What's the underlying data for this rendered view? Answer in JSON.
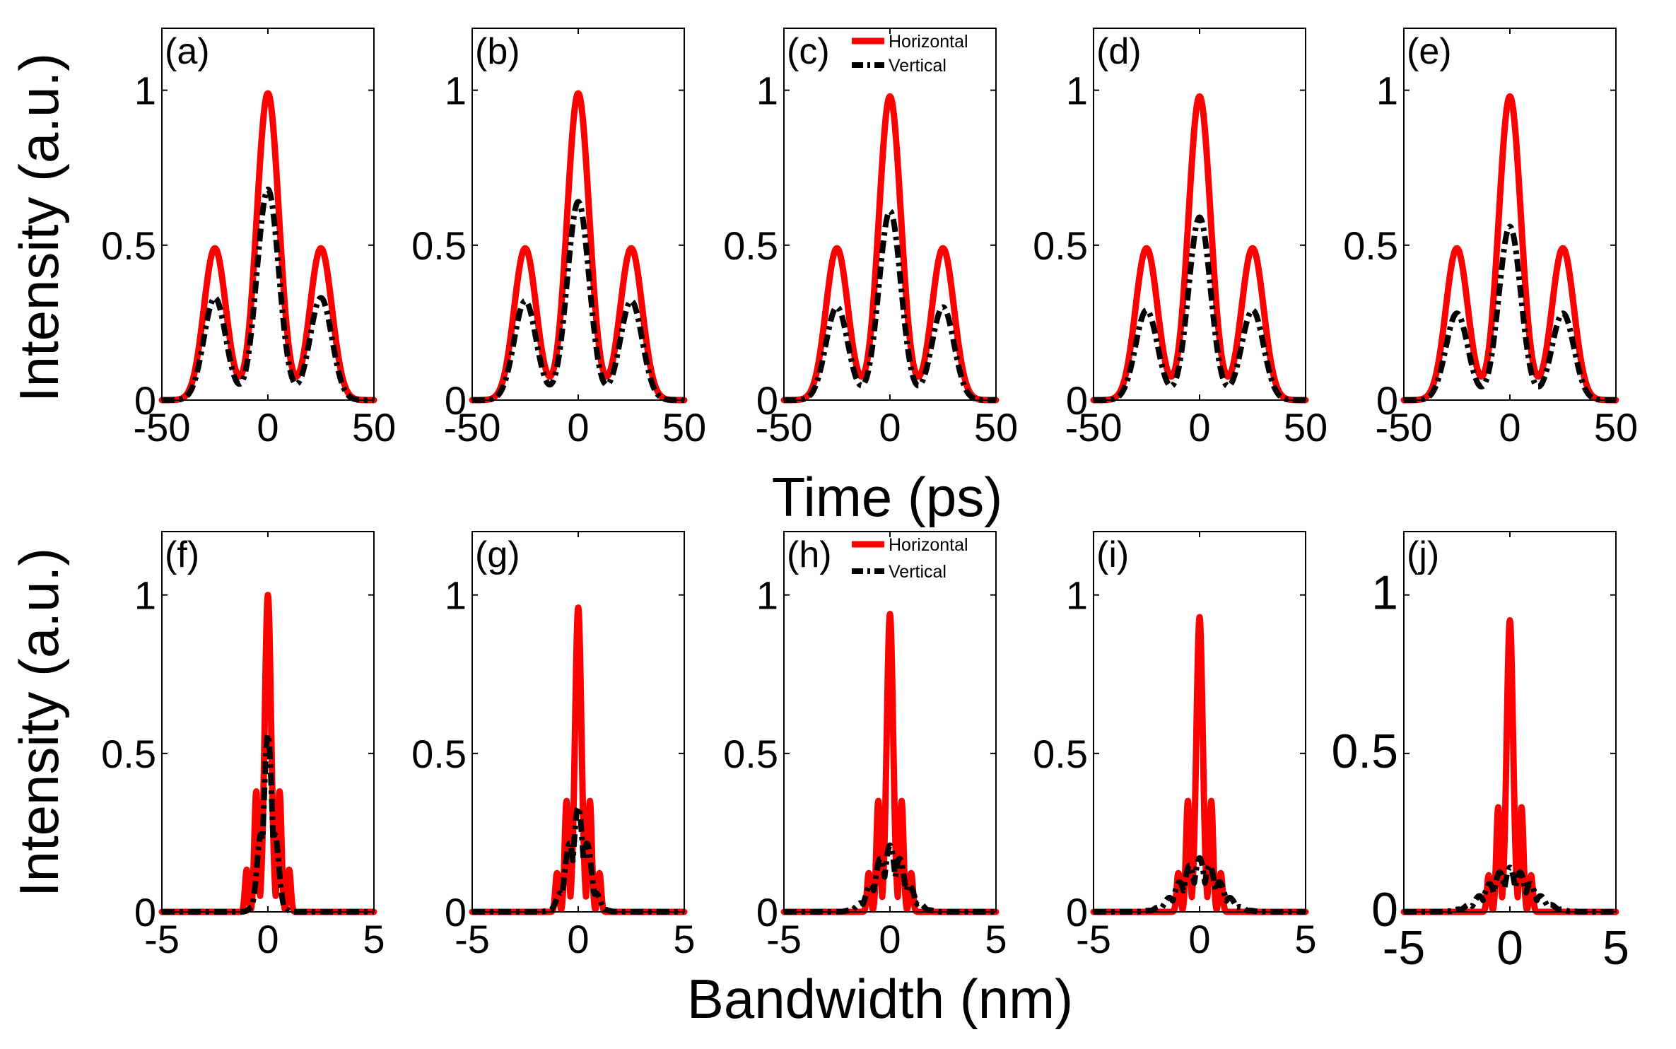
{
  "figure": {
    "shared_ylabel_top": "Intensity (a.u.)",
    "shared_ylabel_bottom": "Intensity (a.u.)",
    "shared_xlabel_top": "Time (ps)",
    "shared_xlabel_bottom": "Bandwidth (nm)"
  },
  "legend": {
    "entries": [
      "Horizontal",
      "Vertical"
    ],
    "colors": {
      "Horizontal": "#ff0000",
      "Vertical": "#000000"
    },
    "styles": {
      "Horizontal": "solid",
      "Vertical": "dash-dot"
    },
    "placement": "top-right of panels (c) and (h)"
  },
  "chart_data": [
    {
      "panel": "(a)",
      "type": "line",
      "domain": "time",
      "xlim": [
        -50,
        50
      ],
      "ylim": [
        0,
        1.2
      ],
      "xticks": [
        "-50",
        "0",
        "50"
      ],
      "yticks": [
        "0",
        "0.5",
        "1"
      ],
      "series": [
        {
          "name": "Horizontal",
          "peaks": [
            {
              "x": -25,
              "y": 0.49
            },
            {
              "x": 0,
              "y": 0.99
            },
            {
              "x": 25,
              "y": 0.49
            }
          ]
        },
        {
          "name": "Vertical",
          "peaks": [
            {
              "x": -25,
              "y": 0.33
            },
            {
              "x": 0,
              "y": 0.68
            },
            {
              "x": 25,
              "y": 0.33
            }
          ]
        }
      ]
    },
    {
      "panel": "(b)",
      "type": "line",
      "domain": "time",
      "xlim": [
        -50,
        50
      ],
      "ylim": [
        0,
        1.2
      ],
      "xticks": [
        "-50",
        "0",
        "50"
      ],
      "yticks": [
        "0",
        "0.5",
        "1"
      ],
      "series": [
        {
          "name": "Horizontal",
          "peaks": [
            {
              "x": -25,
              "y": 0.49
            },
            {
              "x": 0,
              "y": 0.99
            },
            {
              "x": 25,
              "y": 0.49
            }
          ]
        },
        {
          "name": "Vertical",
          "peaks": [
            {
              "x": -25,
              "y": 0.32
            },
            {
              "x": 0,
              "y": 0.64
            },
            {
              "x": 25,
              "y": 0.32
            }
          ]
        }
      ]
    },
    {
      "panel": "(c)",
      "type": "line",
      "domain": "time",
      "xlim": [
        -50,
        50
      ],
      "ylim": [
        0,
        1.2
      ],
      "xticks": [
        "-50",
        "0",
        "50"
      ],
      "yticks": [
        "0",
        "0.5",
        "1"
      ],
      "series": [
        {
          "name": "Horizontal",
          "peaks": [
            {
              "x": -25,
              "y": 0.49
            },
            {
              "x": 0,
              "y": 0.98
            },
            {
              "x": 25,
              "y": 0.49
            }
          ]
        },
        {
          "name": "Vertical",
          "peaks": [
            {
              "x": -25,
              "y": 0.3
            },
            {
              "x": 0,
              "y": 0.61
            },
            {
              "x": 25,
              "y": 0.3
            }
          ]
        }
      ]
    },
    {
      "panel": "(d)",
      "type": "line",
      "domain": "time",
      "xlim": [
        -50,
        50
      ],
      "ylim": [
        0,
        1.2
      ],
      "xticks": [
        "-50",
        "0",
        "50"
      ],
      "yticks": [
        "0",
        "0.5",
        "1"
      ],
      "series": [
        {
          "name": "Horizontal",
          "peaks": [
            {
              "x": -25,
              "y": 0.49
            },
            {
              "x": 0,
              "y": 0.98
            },
            {
              "x": 25,
              "y": 0.49
            }
          ]
        },
        {
          "name": "Vertical",
          "peaks": [
            {
              "x": -25,
              "y": 0.29
            },
            {
              "x": 0,
              "y": 0.59
            },
            {
              "x": 25,
              "y": 0.29
            }
          ]
        }
      ]
    },
    {
      "panel": "(e)",
      "type": "line",
      "domain": "time",
      "xlim": [
        -50,
        50
      ],
      "ylim": [
        0,
        1.2
      ],
      "xticks": [
        "-50",
        "0",
        "50"
      ],
      "yticks": [
        "0",
        "0.5",
        "1"
      ],
      "series": [
        {
          "name": "Horizontal",
          "peaks": [
            {
              "x": -25,
              "y": 0.49
            },
            {
              "x": 0,
              "y": 0.98
            },
            {
              "x": 25,
              "y": 0.49
            }
          ]
        },
        {
          "name": "Vertical",
          "peaks": [
            {
              "x": -25,
              "y": 0.28
            },
            {
              "x": 0,
              "y": 0.56
            },
            {
              "x": 25,
              "y": 0.28
            }
          ]
        }
      ]
    },
    {
      "panel": "(f)",
      "type": "line",
      "domain": "spectrum",
      "xlim": [
        -5,
        5
      ],
      "ylim": [
        0,
        1.2
      ],
      "xticks": [
        "-5",
        "0",
        "5"
      ],
      "yticks": [
        "0",
        "0.5",
        "1"
      ],
      "series": [
        {
          "name": "Horizontal",
          "main_peak": 1.0,
          "side_peaks": 0.38,
          "width": 0.2
        },
        {
          "name": "Vertical",
          "main_peak": 0.56,
          "envelope_width": 0.7
        }
      ]
    },
    {
      "panel": "(g)",
      "type": "line",
      "domain": "spectrum",
      "xlim": [
        -5,
        5
      ],
      "ylim": [
        0,
        1.2
      ],
      "xticks": [
        "-5",
        "0",
        "5"
      ],
      "yticks": [
        "0",
        "0.5",
        "1"
      ],
      "series": [
        {
          "name": "Horizontal",
          "main_peak": 0.96,
          "side_peaks": 0.35,
          "width": 0.2
        },
        {
          "name": "Vertical",
          "main_peak": 0.33,
          "envelope_width": 1.1
        }
      ]
    },
    {
      "panel": "(h)",
      "type": "line",
      "domain": "spectrum",
      "xlim": [
        -5,
        5
      ],
      "ylim": [
        0,
        1.2
      ],
      "xticks": [
        "-5",
        "0",
        "5"
      ],
      "yticks": [
        "0",
        "0.5",
        "1"
      ],
      "series": [
        {
          "name": "Horizontal",
          "main_peak": 0.94,
          "side_peaks": 0.35,
          "width": 0.2
        },
        {
          "name": "Vertical",
          "main_peak": 0.21,
          "envelope_width": 1.6
        }
      ]
    },
    {
      "panel": "(i)",
      "type": "line",
      "domain": "spectrum",
      "xlim": [
        -5,
        5
      ],
      "ylim": [
        0,
        1.2
      ],
      "xticks": [
        "-5",
        "0",
        "5"
      ],
      "yticks": [
        "0",
        "0.5",
        "1"
      ],
      "series": [
        {
          "name": "Horizontal",
          "main_peak": 0.93,
          "side_peaks": 0.35,
          "width": 0.2
        },
        {
          "name": "Vertical",
          "main_peak": 0.17,
          "envelope_width": 2.0
        }
      ]
    },
    {
      "panel": "(j)",
      "type": "line",
      "domain": "spectrum",
      "xlim": [
        -5,
        5
      ],
      "ylim": [
        0,
        1.2
      ],
      "xticks": [
        "-5",
        "0",
        "5"
      ],
      "yticks": [
        "0",
        "0.5",
        "1"
      ],
      "series": [
        {
          "name": "Horizontal",
          "main_peak": 0.92,
          "side_peaks": 0.33,
          "width": 0.2
        },
        {
          "name": "Vertical",
          "main_peak": 0.14,
          "envelope_width": 2.3
        }
      ]
    }
  ]
}
